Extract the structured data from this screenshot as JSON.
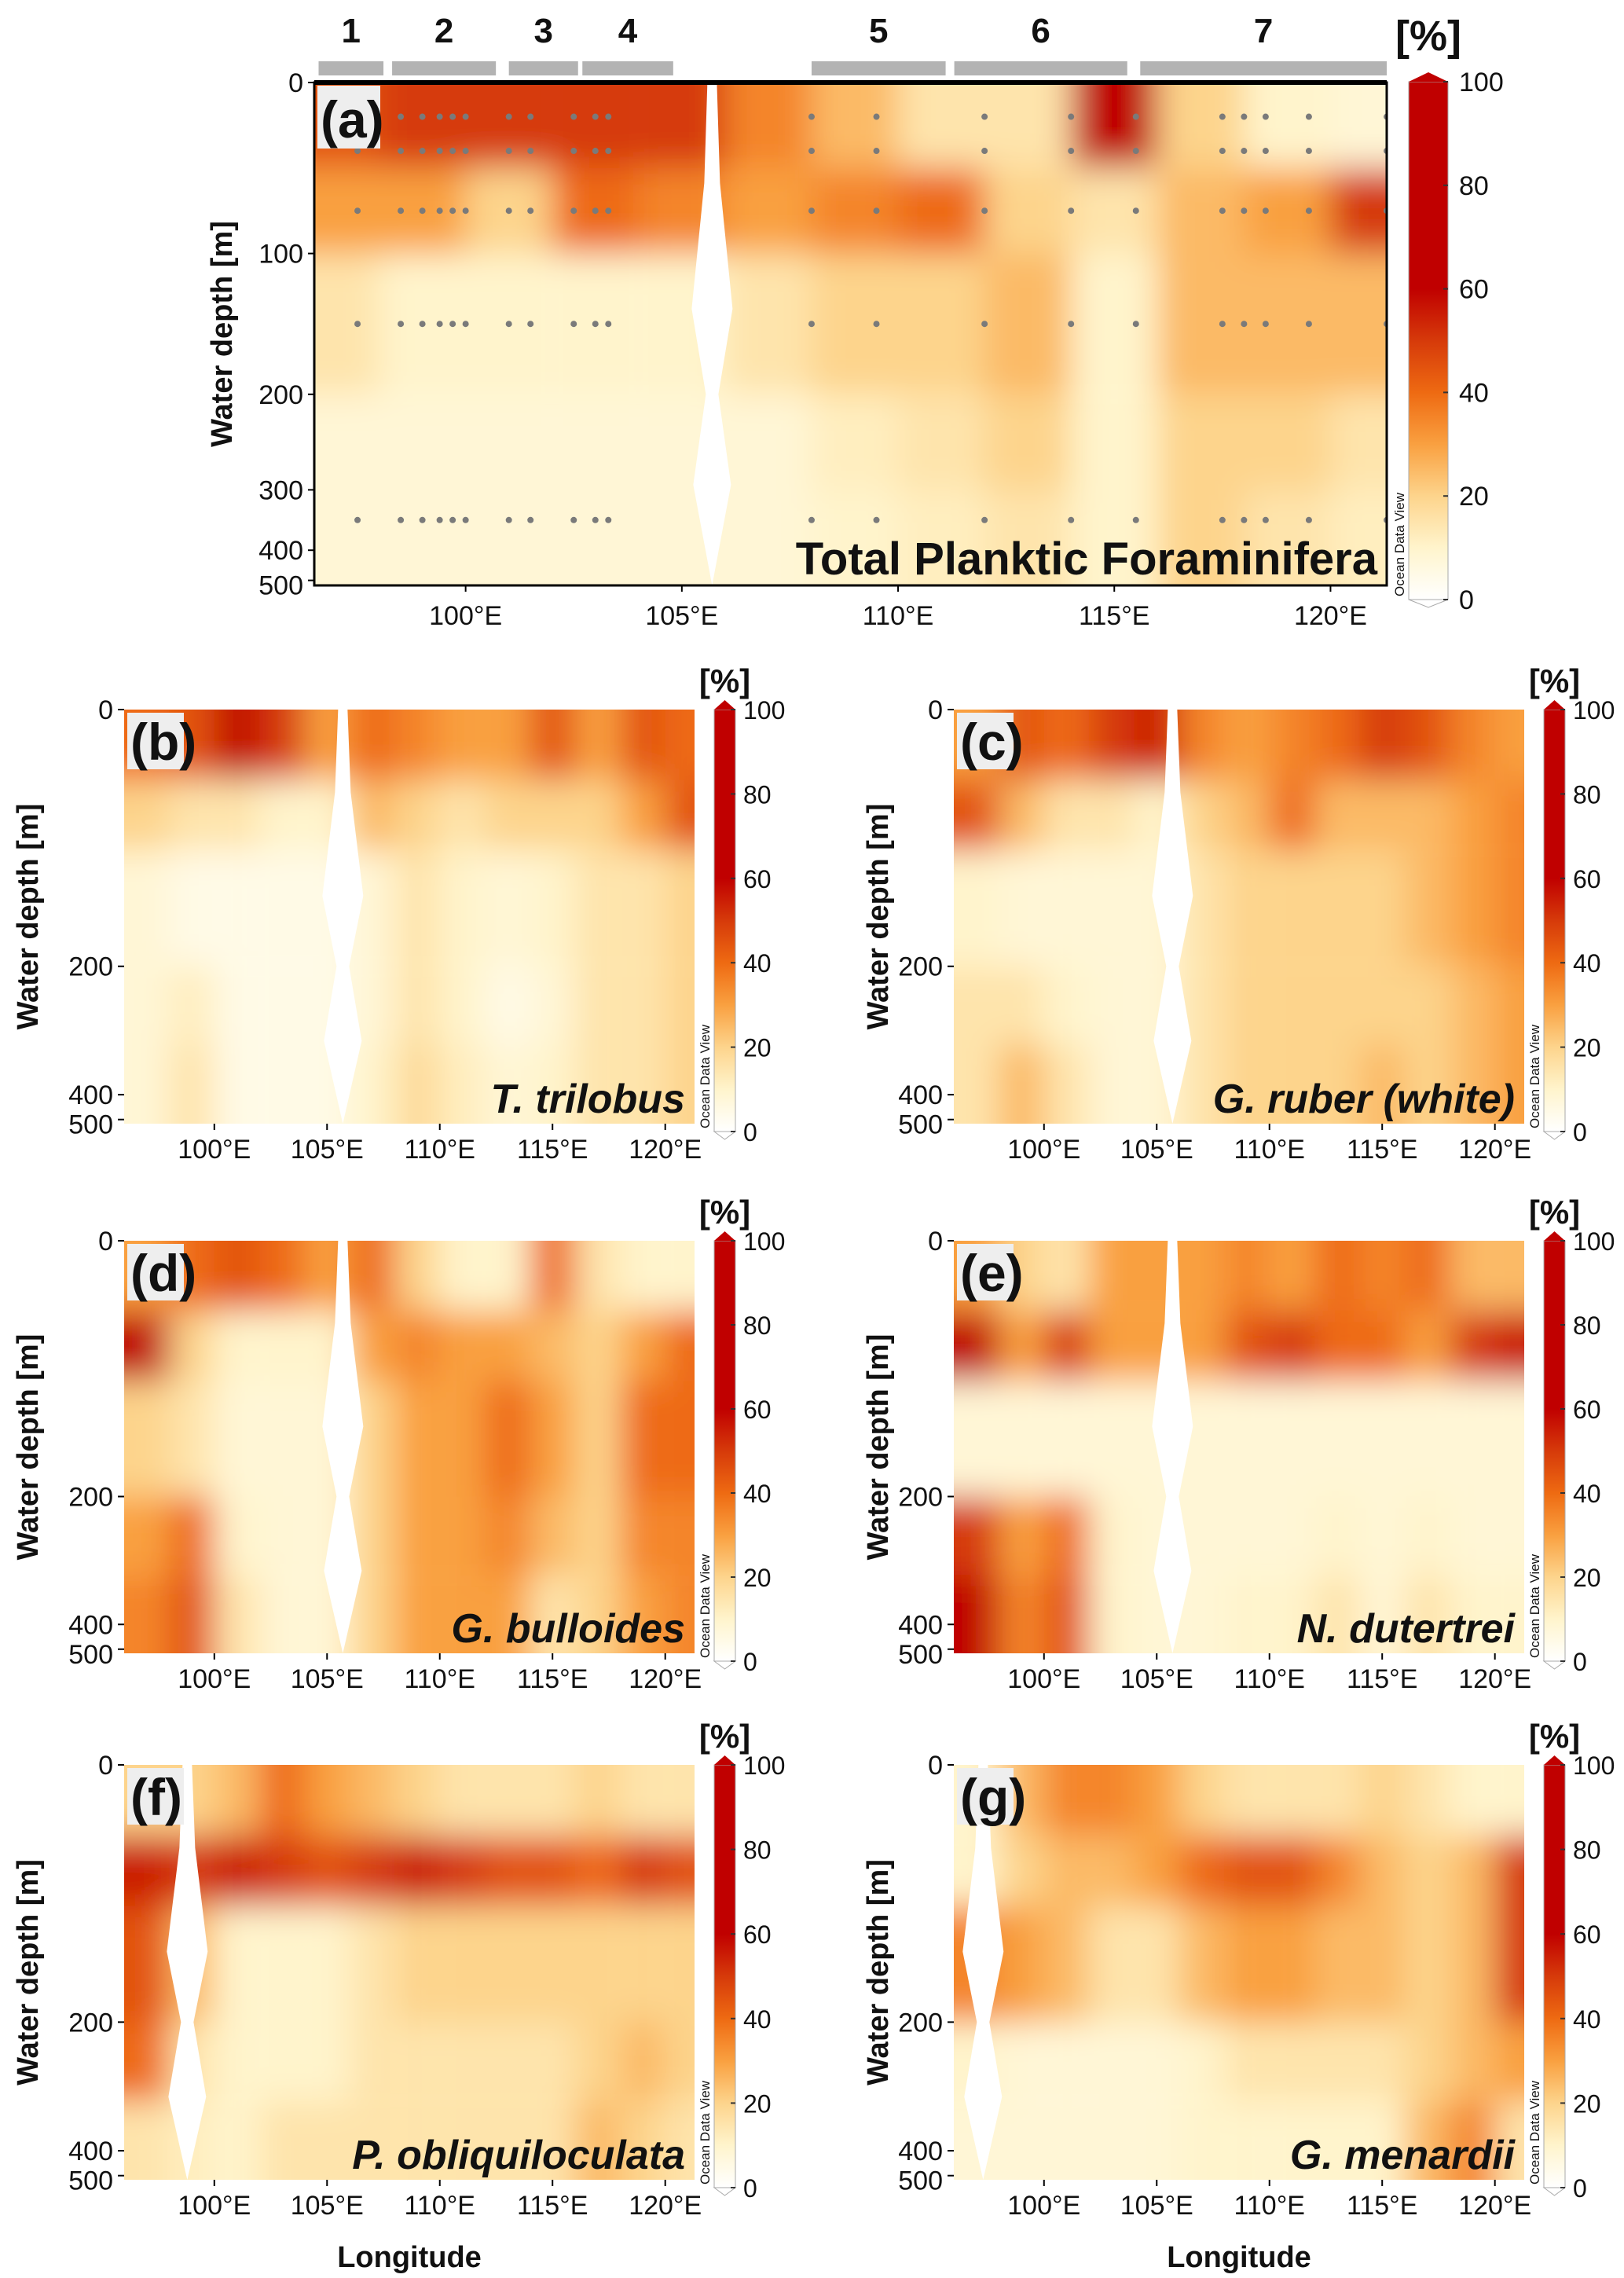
{
  "chart_data": {
    "type": "heatmap",
    "xlabel": "Longitude",
    "ylabel": "Water depth [m]",
    "colorbar": {
      "range": [
        0,
        100
      ],
      "ticks": [
        "0",
        "20",
        "40",
        "60",
        "80",
        "100"
      ],
      "unit_label": "[%]",
      "credit": "Ocean Data View",
      "colormap": [
        [
          0,
          "#ffffff"
        ],
        [
          10,
          "#fff4cc"
        ],
        [
          20,
          "#fdd48c"
        ],
        [
          30,
          "#f9a040"
        ],
        [
          40,
          "#ee6a12"
        ],
        [
          50,
          "#d63a0a"
        ],
        [
          60,
          "#c00000"
        ],
        [
          100,
          "#c00000"
        ]
      ]
    },
    "lon_centers": [
      97,
      99,
      101,
      103,
      105,
      107,
      109,
      111,
      113,
      115,
      117,
      119,
      121
    ],
    "depth_rows": [
      [
        0,
        50
      ],
      [
        50,
        100
      ],
      [
        100,
        200
      ],
      [
        200,
        300
      ],
      [
        300,
        500
      ]
    ],
    "stations": {
      "groups": [
        {
          "label": "1",
          "lon": [
            96.6,
            98.1
          ]
        },
        {
          "label": "2",
          "lon": [
            98.3,
            100.7
          ]
        },
        {
          "label": "3",
          "lon": [
            101.0,
            102.6
          ]
        },
        {
          "label": "4",
          "lon": [
            102.7,
            104.8
          ]
        },
        {
          "label": "5",
          "lon": [
            108.0,
            111.1
          ]
        },
        {
          "label": "6",
          "lon": [
            111.3,
            115.3
          ]
        },
        {
          "label": "7",
          "lon": [
            115.6,
            121.3
          ]
        }
      ],
      "sample_lons": [
        97.5,
        98.5,
        99.0,
        99.4,
        99.7,
        100.0,
        101.0,
        101.5,
        102.5,
        103.0,
        103.3,
        108.0,
        109.5,
        112.0,
        114.0,
        115.5,
        117.5,
        118.0,
        118.5,
        119.5,
        121.3
      ],
      "sample_depths": [
        20,
        40,
        75,
        150,
        350
      ]
    },
    "panels": [
      {
        "id": "a",
        "label": "(a)",
        "title": "Total Planktic Foraminifera",
        "italic": false,
        "lon_range": [
          96.5,
          121.3
        ],
        "depth_ticks": [
          "0",
          "100",
          "200",
          "300",
          "400",
          "500"
        ],
        "lon_ticks": [
          "100°E",
          "105°E",
          "110°E",
          "115°E",
          "120°E"
        ],
        "gap_lon": 105.7,
        "values": [
          [
            45,
            50,
            50,
            50,
            50,
            35,
            25,
            15,
            15,
            60,
            20,
            10,
            8
          ],
          [
            30,
            30,
            20,
            40,
            35,
            30,
            35,
            40,
            20,
            15,
            25,
            30,
            50
          ],
          [
            15,
            10,
            10,
            10,
            10,
            15,
            20,
            20,
            25,
            10,
            25,
            25,
            25
          ],
          [
            8,
            8,
            8,
            8,
            8,
            8,
            12,
            15,
            20,
            10,
            20,
            20,
            15
          ],
          [
            8,
            8,
            8,
            8,
            8,
            8,
            10,
            12,
            15,
            10,
            20,
            15,
            12
          ]
        ]
      },
      {
        "id": "b",
        "label": "(b)",
        "title": "T. trilobus",
        "italic": true,
        "lon_range": [
          96.0,
          121.3
        ],
        "depth_ticks": [
          "0",
          "200",
          "400",
          "500"
        ],
        "lon_ticks": [
          "100°E",
          "105°E",
          "110°E",
          "115°E",
          "120°E"
        ],
        "gap_lon": 105.7,
        "values": [
          [
            40,
            45,
            60,
            50,
            30,
            40,
            35,
            30,
            30,
            45,
            30,
            45,
            40
          ],
          [
            20,
            15,
            15,
            10,
            10,
            25,
            20,
            15,
            20,
            20,
            20,
            30,
            45
          ],
          [
            8,
            5,
            5,
            5,
            5,
            8,
            15,
            10,
            8,
            10,
            15,
            15,
            20
          ],
          [
            8,
            12,
            5,
            5,
            5,
            8,
            15,
            10,
            5,
            8,
            15,
            15,
            20
          ],
          [
            8,
            15,
            5,
            5,
            5,
            10,
            18,
            12,
            8,
            10,
            15,
            15,
            20
          ]
        ]
      },
      {
        "id": "c",
        "label": "(c)",
        "title": "G. ruber (white)",
        "italic": true,
        "lon_range": [
          96.0,
          121.3
        ],
        "depth_ticks": [
          "0",
          "200",
          "400",
          "500"
        ],
        "lon_ticks": [
          "100°E",
          "105°E",
          "110°E",
          "115°E",
          "120°E"
        ],
        "gap_lon": 105.7,
        "values": [
          [
            30,
            45,
            40,
            50,
            55,
            35,
            30,
            35,
            40,
            50,
            45,
            35,
            30
          ],
          [
            45,
            25,
            15,
            15,
            10,
            20,
            25,
            40,
            25,
            25,
            25,
            30,
            35
          ],
          [
            10,
            8,
            8,
            8,
            8,
            15,
            20,
            20,
            20,
            20,
            25,
            30,
            35
          ],
          [
            15,
            15,
            10,
            8,
            8,
            15,
            20,
            20,
            20,
            20,
            20,
            25,
            30
          ],
          [
            15,
            25,
            15,
            8,
            8,
            15,
            20,
            20,
            20,
            25,
            20,
            25,
            30
          ]
        ]
      },
      {
        "id": "d",
        "label": "(d)",
        "title": "G. bulloides",
        "italic": true,
        "lon_range": [
          96.0,
          121.3
        ],
        "depth_ticks": [
          "0",
          "200",
          "400",
          "500"
        ],
        "lon_ticks": [
          "100°E",
          "105°E",
          "110°E",
          "115°E",
          "120°E"
        ],
        "gap_lon": 105.7,
        "values": [
          [
            30,
            40,
            45,
            40,
            30,
            40,
            20,
            10,
            10,
            40,
            15,
            10,
            10
          ],
          [
            60,
            20,
            10,
            10,
            10,
            30,
            35,
            30,
            30,
            25,
            20,
            30,
            40
          ],
          [
            20,
            15,
            8,
            8,
            8,
            20,
            30,
            30,
            40,
            30,
            20,
            40,
            40
          ],
          [
            30,
            40,
            10,
            8,
            8,
            20,
            30,
            30,
            35,
            25,
            20,
            35,
            35
          ],
          [
            35,
            45,
            15,
            8,
            8,
            20,
            30,
            30,
            30,
            15,
            20,
            30,
            35
          ]
        ]
      },
      {
        "id": "e",
        "label": "(e)",
        "title": "N. dutertrei",
        "italic": true,
        "lon_range": [
          96.0,
          121.3
        ],
        "depth_ticks": [
          "0",
          "200",
          "400",
          "500"
        ],
        "lon_ticks": [
          "100°E",
          "105°E",
          "110°E",
          "115°E",
          "120°E"
        ],
        "gap_lon": 105.7,
        "values": [
          [
            30,
            20,
            15,
            30,
            30,
            30,
            35,
            30,
            40,
            35,
            40,
            25,
            25
          ],
          [
            60,
            30,
            50,
            30,
            30,
            30,
            45,
            50,
            40,
            40,
            30,
            50,
            55
          ],
          [
            8,
            8,
            8,
            8,
            8,
            8,
            8,
            8,
            8,
            8,
            8,
            8,
            8
          ],
          [
            50,
            30,
            40,
            10,
            8,
            8,
            8,
            8,
            10,
            8,
            10,
            8,
            8
          ],
          [
            60,
            35,
            45,
            10,
            8,
            8,
            10,
            10,
            15,
            8,
            15,
            10,
            10
          ]
        ]
      },
      {
        "id": "f",
        "label": "(f)",
        "title": "P. obliquiloculata",
        "italic": true,
        "lon_range": [
          96.0,
          121.3
        ],
        "depth_ticks": [
          "0",
          "200",
          "400",
          "500"
        ],
        "lon_ticks": [
          "100°E",
          "105°E",
          "110°E",
          "115°E",
          "120°E"
        ],
        "gap_lon": 98.8,
        "values": [
          [
            20,
            20,
            25,
            40,
            30,
            25,
            20,
            15,
            15,
            15,
            20,
            15,
            15
          ],
          [
            55,
            50,
            55,
            50,
            45,
            50,
            55,
            50,
            45,
            45,
            40,
            50,
            45
          ],
          [
            45,
            25,
            10,
            10,
            10,
            15,
            20,
            20,
            20,
            20,
            20,
            20,
            20
          ],
          [
            40,
            15,
            10,
            10,
            10,
            15,
            15,
            15,
            15,
            15,
            20,
            25,
            20
          ],
          [
            15,
            12,
            10,
            15,
            15,
            15,
            15,
            15,
            15,
            15,
            25,
            20,
            15
          ]
        ]
      },
      {
        "id": "g",
        "label": "(g)",
        "title": "G. menardii",
        "italic": true,
        "lon_range": [
          96.0,
          121.3
        ],
        "depth_ticks": [
          "0",
          "200",
          "400",
          "500"
        ],
        "lon_ticks": [
          "100°E",
          "105°E",
          "110°E",
          "115°E",
          "120°E"
        ],
        "gap_lon": 97.3,
        "values": [
          [
            10,
            25,
            35,
            35,
            30,
            20,
            15,
            15,
            15,
            20,
            15,
            10,
            10
          ],
          [
            10,
            20,
            25,
            25,
            30,
            40,
            45,
            45,
            35,
            25,
            20,
            25,
            50
          ],
          [
            35,
            30,
            25,
            15,
            15,
            25,
            30,
            30,
            25,
            25,
            20,
            25,
            50
          ],
          [
            10,
            8,
            8,
            8,
            8,
            10,
            15,
            15,
            15,
            15,
            20,
            25,
            30
          ],
          [
            8,
            8,
            8,
            8,
            8,
            10,
            10,
            10,
            10,
            10,
            25,
            35,
            15
          ]
        ]
      }
    ]
  }
}
